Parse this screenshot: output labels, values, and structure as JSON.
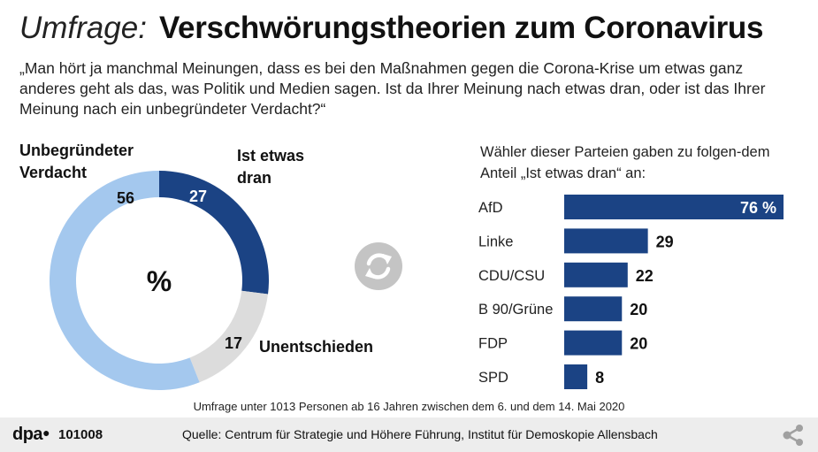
{
  "header": {
    "kicker": "Umfrage:",
    "title": "Verschwörungstheorien zum Coronavirus",
    "question": "„Man hört ja manchmal Meinungen, dass es bei den Maßnahmen gegen die Corona-Krise um etwas ganz anderes geht als das, was Politik und Medien sagen. Ist da Ihrer Meinung nach etwas dran, oder ist das Ihrer Meinung nach ein unbegründeter Verdacht?“"
  },
  "pie_labels": {
    "unbegruendet": "Unbegründeter Verdacht",
    "etwas_dran": "Ist etwas dran",
    "unentschieden": "Unentschieden"
  },
  "bar_title": "Wähler dieser Parteien gaben zu folgen-dem Anteil „Ist etwas dran“ an:",
  "note": "Umfrage unter 1013 Personen ab 16 Jahren zwischen dem 6. und dem 14. Mai 2020",
  "footer": {
    "logo": "dpa",
    "code": "101008",
    "source": "Quelle: Centrum für Strategie und Höhere Führung, Institut für Demoskopie Allensbach",
    "share_icon": "share-icon"
  },
  "icons": {
    "center": "refresh-icon"
  },
  "colors": {
    "dark_blue": "#1b4384",
    "light_blue": "#a4c8ee",
    "grey": "#dcdcdc"
  },
  "chart_data": [
    {
      "type": "pie",
      "center_label": "%",
      "categories": [
        "Ist etwas dran",
        "Unentschieden",
        "Unbegründeter Verdacht"
      ],
      "values": [
        27,
        17,
        56
      ],
      "colors": [
        "#1b4384",
        "#dcdcdc",
        "#a4c8ee"
      ]
    },
    {
      "type": "bar",
      "orientation": "horizontal",
      "categories": [
        "AfD",
        "Linke",
        "CDU/CSU",
        "B 90/Grüne",
        "FDP",
        "SPD"
      ],
      "values": [
        76,
        29,
        22,
        20,
        20,
        8
      ],
      "value_labels": [
        "76 %",
        "29",
        "22",
        "20",
        "20",
        "8"
      ],
      "color": "#1b4384",
      "xlim": [
        0,
        76
      ]
    }
  ]
}
